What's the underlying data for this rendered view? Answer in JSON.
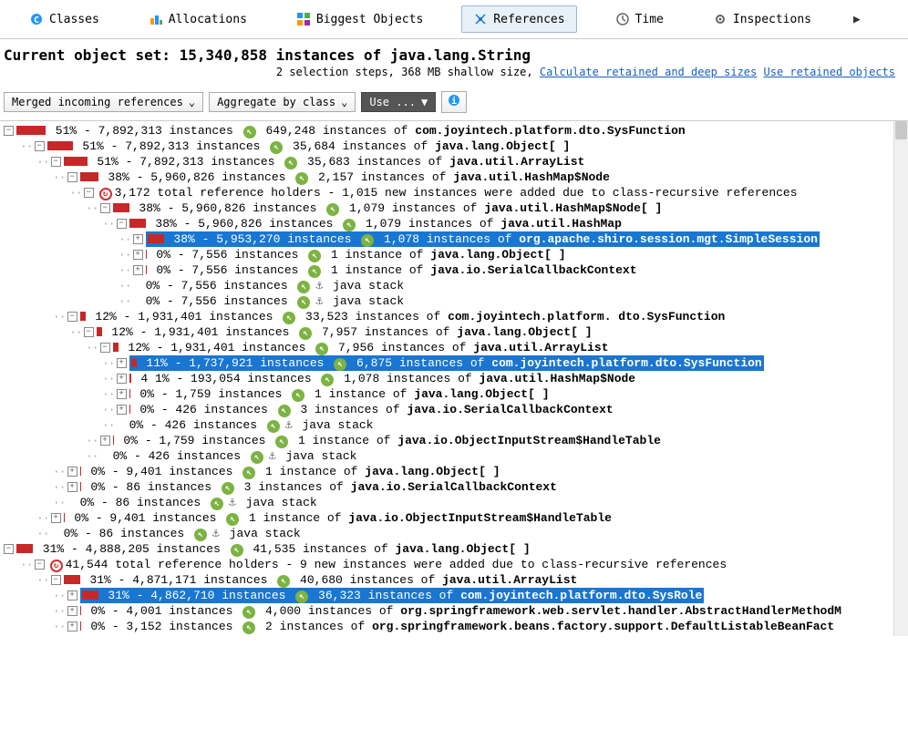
{
  "tabs": {
    "classes": "Classes",
    "allocations": "Allocations",
    "biggest": "Biggest Objects",
    "references": "References",
    "time": "Time",
    "inspections": "Inspections"
  },
  "header": {
    "title": "Current object set: 15,340,858 instances of java.lang.String",
    "sub_plain": "2 selection steps, 368 MB shallow size, ",
    "link1": "Calculate retained and deep sizes",
    "link2": "Use retained objects"
  },
  "toolbar": {
    "d1": "Merged incoming references",
    "d2": "Aggregate by class",
    "d3": "Use ..."
  },
  "rows": [
    {
      "i": 0,
      "t": "-",
      "bw": 32,
      "p": "51% - 7,892,313 instances",
      "g": true,
      "m": " 649,248 instances of ",
      "b": "com.joyintech.platform.dto.SysFunction"
    },
    {
      "i": 1,
      "t": "-",
      "bw": 28,
      "p": "51% - 7,892,313 instances",
      "g": true,
      "m": " 35,684 instances of ",
      "b": "java.lang.Object[ ]"
    },
    {
      "i": 2,
      "t": "-",
      "bw": 26,
      "p": "51% - 7,892,313 instances",
      "g": true,
      "m": " 35,683 instances of ",
      "b": "java.util.ArrayList"
    },
    {
      "i": 3,
      "t": "-",
      "bw": 20,
      "p": "38% - 5,960,826 instances",
      "g": true,
      "m": " 2,157 instances of ",
      "b": "java.util.HashMap$Node"
    },
    {
      "i": 4,
      "t": "-",
      "r": true,
      "p": "3,172 total reference holders - 1,015 new instances were added due to class-recursive references"
    },
    {
      "i": 5,
      "t": "-",
      "bw": 18,
      "p": "38% - 5,960,826 instances",
      "g": true,
      "m": " 1,079 instances of ",
      "b": "java.util.HashMap$Node[ ]"
    },
    {
      "i": 6,
      "t": "-",
      "bw": 18,
      "p": "38% - 5,960,826 instances",
      "g": true,
      "m": " 1,079 instances of ",
      "b": "java.util.HashMap"
    },
    {
      "i": 7,
      "t": "+",
      "sel": true,
      "bw": 18,
      "p": "38% - 5,953,270 instances",
      "g": true,
      "m": " 1,078 instances of ",
      "b": "org.apache.shiro.session.mgt.SimpleSession"
    },
    {
      "i": 7,
      "t": "+",
      "bw": 1,
      "p": "0% - 7,556 instances",
      "g": true,
      "m": " 1 instance of ",
      "b": "java.lang.Object[ ]"
    },
    {
      "i": 7,
      "t": "+",
      "bw": 1,
      "p": "0% - 7,556 instances",
      "g": true,
      "m": " 1 instance of ",
      "b": "java.io.SerialCallbackContext"
    },
    {
      "i": 7,
      "t": " ",
      "bw": 0,
      "p": "0% - 7,556 instances",
      "g": true,
      "anc": true,
      "m": "  java stack"
    },
    {
      "i": 7,
      "t": " ",
      "bw": 0,
      "p": "0% - 7,556 instances",
      "g": true,
      "anc": true,
      "m": "  java stack"
    },
    {
      "i": 3,
      "t": "-",
      "bw": 6,
      "p": "12% - 1,931,401 instances",
      "g": true,
      "m": " 33,523 instances of ",
      "b": "com.joyintech.platform. dto.SysFunction"
    },
    {
      "i": 4,
      "t": "-",
      "bw": 6,
      "p": "12% - 1,931,401 instances",
      "g": true,
      "m": " 7,957 instances of ",
      "b": "java.lang.Object[ ]"
    },
    {
      "i": 5,
      "t": "-",
      "bw": 6,
      "p": "12% - 1,931,401 instances",
      "g": true,
      "m": " 7,956 instances of ",
      "b": "java.util.ArrayList"
    },
    {
      "i": 6,
      "t": "+",
      "sel": true,
      "bw": 6,
      "p": "11% - 1,737,921 instances",
      "g": true,
      "m": " 6,875 instances of ",
      "b": "com.joyintech.platform.dto.SysFunction"
    },
    {
      "i": 6,
      "t": "+",
      "bw": 2,
      "p": "4 1% - 193,054 instances",
      "g": true,
      "m": " 1,078 instances of ",
      "b": "java.util.HashMap$Node"
    },
    {
      "i": 6,
      "t": "+",
      "bw": 1,
      "p": "0% - 1,759 instances",
      "g": true,
      "m": " 1 instance of ",
      "b": "java.lang.Object[ ]"
    },
    {
      "i": 6,
      "t": "+",
      "bw": 1,
      "p": "0% - 426 instances",
      "g": true,
      "m": " 3 instances of ",
      "b": "java.io.SerialCallbackContext"
    },
    {
      "i": 6,
      "t": " ",
      "bw": 0,
      "p": "0% - 426 instances",
      "g": true,
      "anc": true,
      "m": "  java stack"
    },
    {
      "i": 5,
      "t": "+",
      "bw": 1,
      "p": "0% - 1,759 instances",
      "g": true,
      "m": " 1 instance of ",
      "b": "java.io.ObjectInputStream$HandleTable"
    },
    {
      "i": 5,
      "t": " ",
      "bw": 0,
      "p": "0% - 426 instances",
      "g": true,
      "anc": true,
      "m": "  java stack"
    },
    {
      "i": 3,
      "t": "+",
      "bw": 1,
      "p": "0% - 9,401 instances",
      "g": true,
      "m": " 1 instance of ",
      "b": "java.lang.Object[ ]"
    },
    {
      "i": 3,
      "t": "+",
      "bw": 1,
      "p": "0% - 86 instances",
      "g": true,
      "m": " 3 instances of ",
      "b": "java.io.SerialCallbackContext"
    },
    {
      "i": 3,
      "t": " ",
      "bw": 0,
      "p": "0% - 86 instances",
      "g": true,
      "anc": true,
      "m": "  java stack"
    },
    {
      "i": 2,
      "t": "+",
      "bw": 1,
      "p": "0% - 9,401 instances",
      "g": true,
      "m": " 1 instance of ",
      "b": "java.io.ObjectInputStream$HandleTable"
    },
    {
      "i": 2,
      "t": " ",
      "bw": 0,
      "p": "0% - 86 instances",
      "g": true,
      "anc": true,
      "m": "  java stack"
    },
    {
      "i": 0,
      "t": "-",
      "bw": 18,
      "p": "31% - 4,888,205 instances",
      "g": true,
      "m": " 41,535 instances of ",
      "b": "java.lang.Object[ ]"
    },
    {
      "i": 1,
      "t": "-",
      "r": true,
      "p": "41,544 total reference holders - 9 new instances were added due to class-recursive references"
    },
    {
      "i": 2,
      "t": "-",
      "bw": 18,
      "p": "31% - 4,871,171 instances",
      "g": true,
      "m": " 40,680 instances of ",
      "b": "java.util.ArrayList"
    },
    {
      "i": 3,
      "t": "+",
      "sel": true,
      "bw": 18,
      "p": "31% - 4,862,710 instances",
      "g": true,
      "m": " 36,323 instances of ",
      "b": "com.joyintech.platform.dto.SysRole"
    },
    {
      "i": 3,
      "t": "+",
      "bw": 1,
      "p": "0% - 4,001 instances",
      "g": true,
      "m": " 4,000 instances of ",
      "b": "org.springframework.web.servlet.handler.AbstractHandlerMethodM"
    },
    {
      "i": 3,
      "t": "+",
      "bw": 1,
      "p": "0% - 3,152 instances",
      "g": true,
      "m": " 2 instances of ",
      "b": "org.springframework.beans.factory.support.DefaultListableBeanFact"
    }
  ]
}
